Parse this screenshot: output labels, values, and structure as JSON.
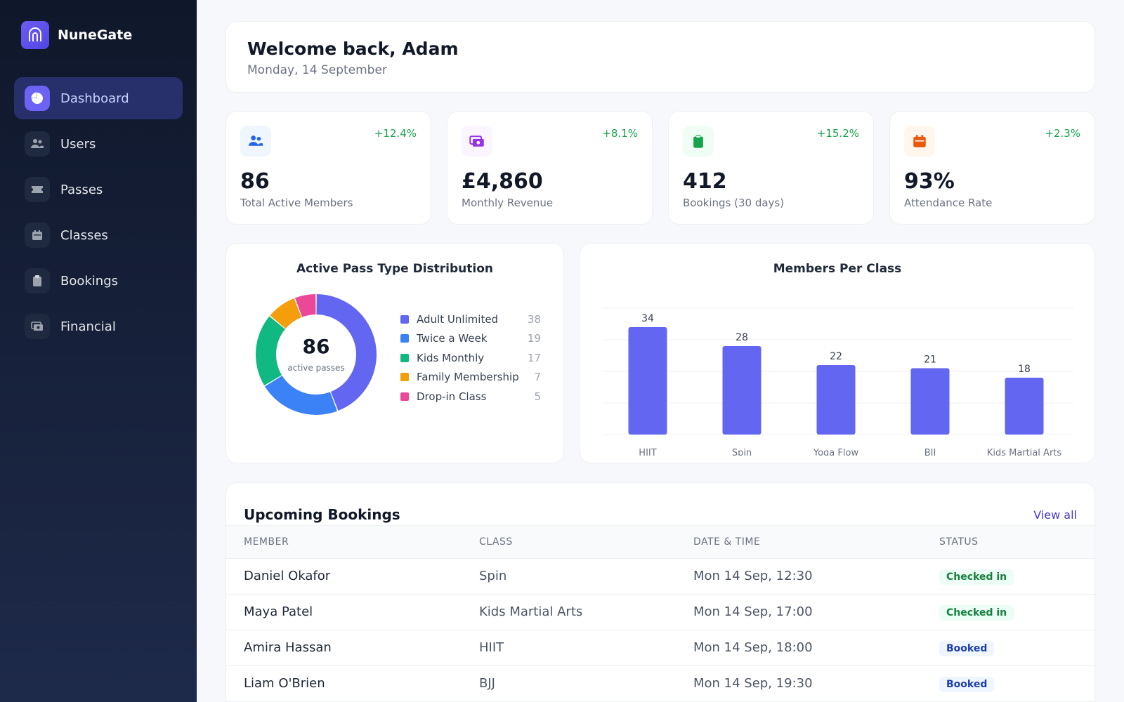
{
  "brand": {
    "name": "NuneGate",
    "icon": "gate-icon"
  },
  "nav": {
    "items": [
      {
        "label": "Dashboard",
        "icon": "pie-chart-icon",
        "active": true
      },
      {
        "label": "Users",
        "icon": "users-icon",
        "active": false
      },
      {
        "label": "Passes",
        "icon": "ticket-icon",
        "active": false
      },
      {
        "label": "Classes",
        "icon": "calendar-icon",
        "active": false
      },
      {
        "label": "Bookings",
        "icon": "clipboard-icon",
        "active": false
      },
      {
        "label": "Financial",
        "icon": "money-icon",
        "active": false
      }
    ]
  },
  "welcome": {
    "title": "Welcome back, Adam",
    "date": "Monday, 14 September"
  },
  "stats": [
    {
      "value": "86",
      "label": "Total Active Members",
      "change": "+12.4%",
      "icon": "users-icon",
      "color": "#2563eb",
      "bg": "#eff6ff"
    },
    {
      "value": "£4,860",
      "label": "Monthly Revenue",
      "change": "+8.1%",
      "icon": "money-icon",
      "color": "#9333ea",
      "bg": "#faf5ff"
    },
    {
      "value": "412",
      "label": "Bookings (30 days)",
      "change": "+15.2%",
      "icon": "clipboard-icon",
      "color": "#16a34a",
      "bg": "#f0fdf4"
    },
    {
      "value": "93%",
      "label": "Attendance Rate",
      "change": "+2.3%",
      "icon": "calendar-icon",
      "color": "#ea580c",
      "bg": "#fff7ed"
    }
  ],
  "chart_data": [
    {
      "type": "pie",
      "title": "Active Pass Type Distribution",
      "center_value": "86",
      "center_label": "active passes",
      "categories": [
        "Adult Unlimited",
        "Twice a Week",
        "Kids Monthly",
        "Family Membership",
        "Drop-in Class"
      ],
      "values": [
        38,
        19,
        17,
        7,
        5
      ],
      "colors": [
        "#6366f1",
        "#3b82f6",
        "#10b981",
        "#f59e0b",
        "#ec4899"
      ],
      "legend": "right"
    },
    {
      "type": "bar",
      "title": "Members Per Class",
      "categories": [
        "HIIT",
        "Spin",
        "Yoga Flow",
        "BJJ",
        "Kids Martial Arts"
      ],
      "values": [
        34,
        28,
        22,
        21,
        18
      ],
      "ylim": [
        0,
        40
      ],
      "grid": true,
      "color": "#6366f1"
    }
  ],
  "bookings": {
    "title": "Upcoming Bookings",
    "view_all": "View all",
    "columns": [
      "MEMBER",
      "CLASS",
      "DATE & TIME",
      "STATUS"
    ],
    "rows": [
      {
        "member": "Daniel Okafor",
        "class": "Spin",
        "datetime": "Mon 14 Sep, 12:30",
        "status": "Checked in",
        "status_type": "checked"
      },
      {
        "member": "Maya Patel",
        "class": "Kids Martial Arts",
        "datetime": "Mon 14 Sep, 17:00",
        "status": "Checked in",
        "status_type": "checked"
      },
      {
        "member": "Amira Hassan",
        "class": "HIIT",
        "datetime": "Mon 14 Sep, 18:00",
        "status": "Booked",
        "status_type": "booked"
      },
      {
        "member": "Liam O'Brien",
        "class": "BJJ",
        "datetime": "Mon 14 Sep, 19:30",
        "status": "Booked",
        "status_type": "booked"
      }
    ]
  }
}
